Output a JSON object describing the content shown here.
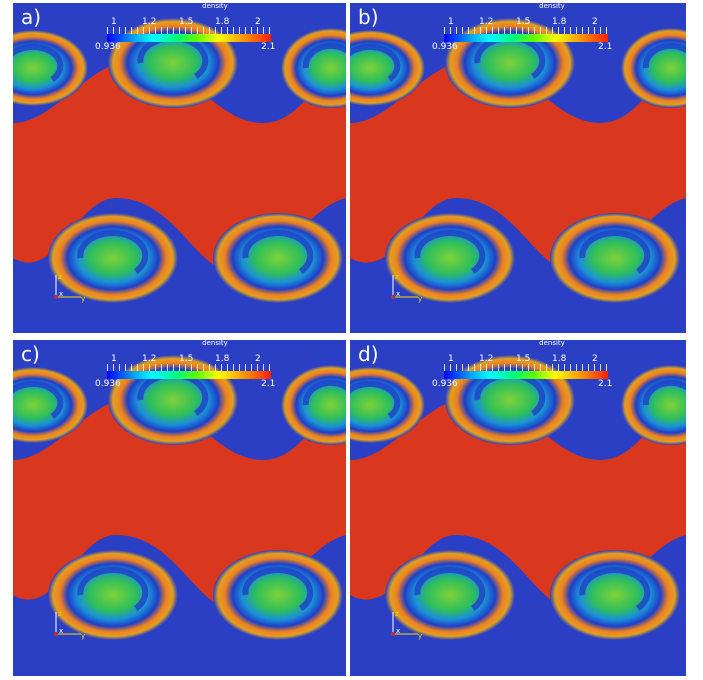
{
  "colorbar": {
    "title": "density",
    "ticks": [
      "1",
      "1.2",
      "1.5",
      "1.8",
      "2"
    ],
    "min_label": "0.936",
    "max_label": "2.1",
    "range": [
      0.936,
      2.1
    ]
  },
  "axis_labels": {
    "z": "z",
    "x": "x",
    "y": "y"
  },
  "panels": [
    {
      "label": "a)"
    },
    {
      "label": "b)"
    },
    {
      "label": "c)"
    },
    {
      "label": "d)"
    }
  ],
  "colors": {
    "low_density": "#2a3fc4",
    "high_density": "#d9381e",
    "mid_density": "#3fc24a"
  }
}
